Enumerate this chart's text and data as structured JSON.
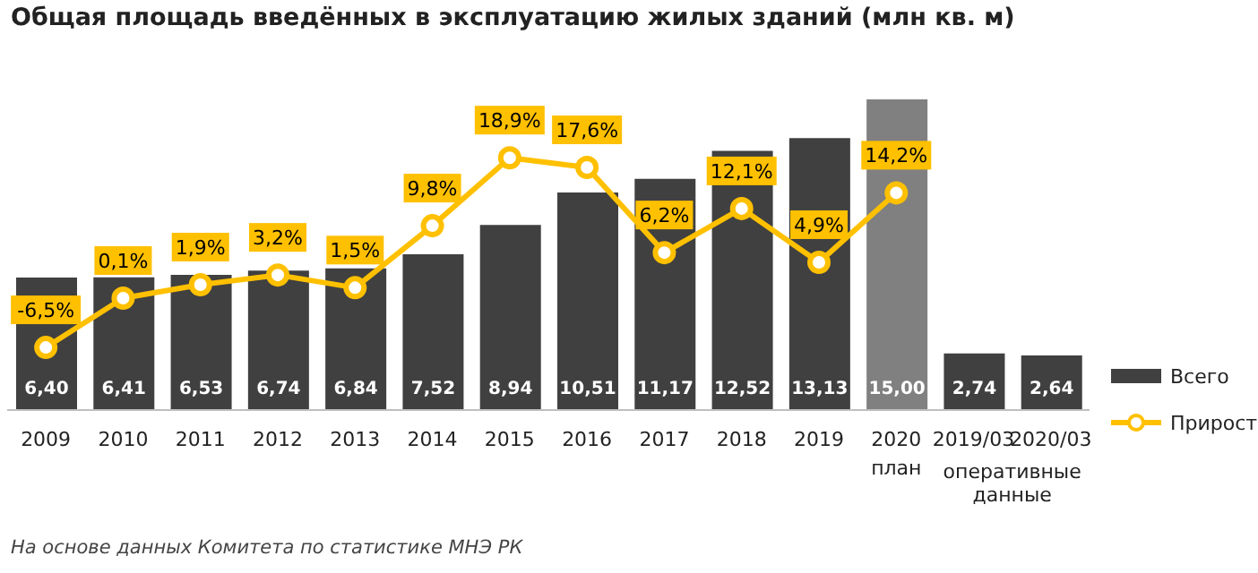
{
  "chart_data": {
    "type": "bar",
    "title": "Общая площадь введённых в эксплуатацию жилых зданий (млн кв. м)",
    "categories": [
      "2009",
      "2010",
      "2011",
      "2012",
      "2013",
      "2014",
      "2015",
      "2016",
      "2017",
      "2018",
      "2019",
      "2020 план",
      "2019/03",
      "2020/03"
    ],
    "series": [
      {
        "name": "Всего",
        "color": "#404040",
        "colors": [
          "#404040",
          "#404040",
          "#404040",
          "#404040",
          "#404040",
          "#404040",
          "#404040",
          "#404040",
          "#404040",
          "#404040",
          "#404040",
          "#808080",
          "#404040",
          "#404040"
        ],
        "values": [
          6.4,
          6.41,
          6.53,
          6.74,
          6.84,
          7.52,
          8.94,
          10.51,
          11.17,
          12.52,
          13.13,
          15.0,
          2.74,
          2.64
        ],
        "value_labels": [
          "6,40",
          "6,41",
          "6,53",
          "6,74",
          "6,84",
          "7,52",
          "8,94",
          "10,51",
          "11,17",
          "12,52",
          "13,13",
          "15,00",
          "2,74",
          "2,64"
        ]
      },
      {
        "name": "Прирост",
        "type": "line",
        "axis": "y2",
        "color": "#ffc000",
        "marker": "circle",
        "values": [
          -6.5,
          0.1,
          1.9,
          3.2,
          1.5,
          9.8,
          18.9,
          17.6,
          6.2,
          12.1,
          4.9,
          14.2,
          null,
          null
        ],
        "value_labels": [
          "-6,5%",
          "0,1%",
          "1,9%",
          "3,2%",
          "1,5%",
          "9,8%",
          "18,9%",
          "17,6%",
          "6,2%",
          "12,1%",
          "4,9%",
          "14,2%",
          null,
          null
        ]
      }
    ],
    "tick_labels": "x",
    "legend": "right",
    "annotations": [
      "оперативные данные",
      "На основе данных Комитета по статистике МНЭ РК"
    ]
  }
}
